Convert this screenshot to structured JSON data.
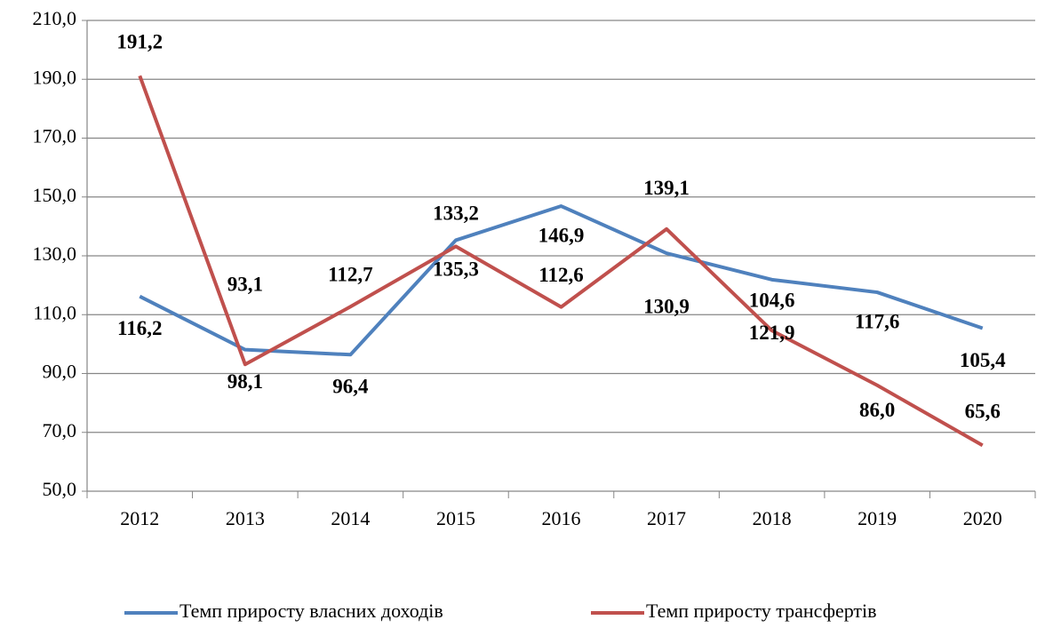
{
  "chart_data": {
    "type": "line",
    "categories": [
      "2012",
      "2013",
      "2014",
      "2015",
      "2016",
      "2017",
      "2018",
      "2019",
      "2020"
    ],
    "series": [
      {
        "name": "Темп приросту власних доходів",
        "color": "#4f81bd",
        "values": [
          116.2,
          98.1,
          96.4,
          135.3,
          146.9,
          130.9,
          121.9,
          117.6,
          105.4
        ],
        "value_labels": [
          "116,2",
          "98,1",
          "96,4",
          "135,3",
          "146,9",
          "130,9",
          "121,9",
          "117,6",
          "105,4"
        ]
      },
      {
        "name": "Темп приросту трансфертів",
        "color": "#c0504d",
        "values": [
          191.2,
          93.1,
          112.7,
          133.2,
          112.6,
          139.1,
          104.6,
          86.0,
          65.6
        ],
        "value_labels": [
          "191,2",
          "93,1",
          "112,7",
          "133,2",
          "112,6",
          "139,1",
          "104,6",
          "86,0",
          "65,6"
        ]
      }
    ],
    "ylim": [
      50,
      210
    ],
    "yticks": [
      {
        "value": 50,
        "label": "50,0"
      },
      {
        "value": 70,
        "label": "70,0"
      },
      {
        "value": 90,
        "label": "90,0"
      },
      {
        "value": 110,
        "label": "110,0"
      },
      {
        "value": 130,
        "label": "130,0"
      },
      {
        "value": 150,
        "label": "150,0"
      },
      {
        "value": 170,
        "label": "170,0"
      },
      {
        "value": 190,
        "label": "190,0"
      },
      {
        "value": 210,
        "label": "210,0"
      }
    ],
    "grid": true,
    "legend": "bottom"
  }
}
